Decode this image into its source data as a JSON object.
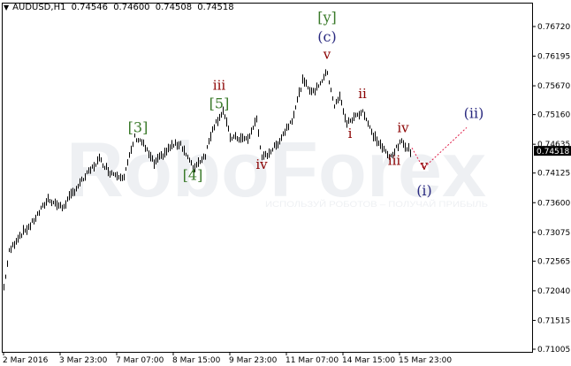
{
  "header": {
    "symbol": "AUDUSD,H1",
    "open": "0.74546",
    "high": "0.74600",
    "low": "0.74508",
    "close": "0.74518"
  },
  "watermark": {
    "logo": "RoboForex",
    "slogan": "ИСПОЛЬЗУЙ РОБОТОВ – ПОЛУЧАЙ ПРИБЫЛЬ"
  },
  "colors": {
    "bars": "#000000",
    "wave_major": "#3a7a2a",
    "wave_intermediate": "#2a2a80",
    "wave_minor": "#8b0000",
    "projection": "#e0204a",
    "price_tag_bg": "#000000"
  },
  "chart_data": {
    "type": "bar",
    "symbol": "AUDUSD",
    "timeframe": "H1",
    "current_price": "0.74518",
    "ylim": [
      0.71005,
      0.7672
    ],
    "y_ticks": [
      "0.76720",
      "0.76195",
      "0.75670",
      "0.75160",
      "0.74635",
      "0.74125",
      "0.73600",
      "0.73075",
      "0.72565",
      "0.72040",
      "0.71515",
      "0.71005"
    ],
    "x_ticks": [
      "2 Mar 2016",
      "3 Mar 23:00",
      "7 Mar 07:00",
      "8 Mar 15:00",
      "9 Mar 23:00",
      "11 Mar 07:00",
      "14 Mar 15:00",
      "15 Mar 23:00"
    ],
    "x_tick_bars": [
      0,
      32,
      64,
      96,
      128,
      160,
      192,
      224
    ],
    "price_path": [
      [
        0,
        0.721
      ],
      [
        3,
        0.7273
      ],
      [
        8,
        0.7299
      ],
      [
        15,
        0.732
      ],
      [
        20,
        0.7343
      ],
      [
        25,
        0.7367
      ],
      [
        33,
        0.7351
      ],
      [
        40,
        0.7382
      ],
      [
        48,
        0.7414
      ],
      [
        54,
        0.7437
      ],
      [
        60,
        0.7414
      ],
      [
        68,
        0.7406
      ],
      [
        74,
        0.7476
      ],
      [
        78,
        0.7468
      ],
      [
        85,
        0.7429
      ],
      [
        95,
        0.7461
      ],
      [
        100,
        0.7465
      ],
      [
        107,
        0.7421
      ],
      [
        114,
        0.7445
      ],
      [
        118,
        0.7492
      ],
      [
        124,
        0.7523
      ],
      [
        128,
        0.7476
      ],
      [
        138,
        0.7472
      ],
      [
        143,
        0.7508
      ],
      [
        146,
        0.7437
      ],
      [
        154,
        0.7461
      ],
      [
        163,
        0.7508
      ],
      [
        169,
        0.7575
      ],
      [
        175,
        0.7555
      ],
      [
        183,
        0.7591
      ],
      [
        187,
        0.7531
      ],
      [
        190,
        0.7547
      ],
      [
        194,
        0.75
      ],
      [
        200,
        0.7516
      ],
      [
        203,
        0.7523
      ],
      [
        208,
        0.7484
      ],
      [
        218,
        0.744
      ],
      [
        225,
        0.7468
      ],
      [
        230,
        0.74518
      ]
    ],
    "wave_labels": [
      {
        "text": "[3]",
        "bar": 76,
        "price": 0.7485,
        "degree": "major"
      },
      {
        "text": "iii",
        "bar": 122,
        "price": 0.756,
        "degree": "minor"
      },
      {
        "text": "[5]",
        "bar": 122,
        "price": 0.7527,
        "degree": "major"
      },
      {
        "text": "[4]",
        "bar": 107,
        "price": 0.74,
        "degree": "major"
      },
      {
        "text": "iv",
        "bar": 146,
        "price": 0.742,
        "degree": "minor"
      },
      {
        "text": "[y]",
        "bar": 183,
        "price": 0.768,
        "degree": "major"
      },
      {
        "text": "(c)",
        "bar": 183,
        "price": 0.7645,
        "degree": "intermediate"
      },
      {
        "text": "v",
        "bar": 183,
        "price": 0.7615,
        "degree": "minor"
      },
      {
        "text": "ii",
        "bar": 203,
        "price": 0.7545,
        "degree": "minor"
      },
      {
        "text": "i",
        "bar": 196,
        "price": 0.7475,
        "degree": "minor"
      },
      {
        "text": "iii",
        "bar": 221,
        "price": 0.7427,
        "degree": "minor"
      },
      {
        "text": "iv",
        "bar": 226,
        "price": 0.7485,
        "degree": "minor"
      },
      {
        "text": "v",
        "bar": 238,
        "price": 0.7418,
        "degree": "minor"
      },
      {
        "text": "(i)",
        "bar": 238,
        "price": 0.7373,
        "degree": "intermediate"
      },
      {
        "text": "(ii)",
        "bar": 266,
        "price": 0.751,
        "degree": "intermediate"
      }
    ],
    "projection": [
      [
        231,
        0.7457
      ],
      [
        237.5,
        0.7421
      ],
      [
        262,
        0.7493
      ]
    ]
  }
}
